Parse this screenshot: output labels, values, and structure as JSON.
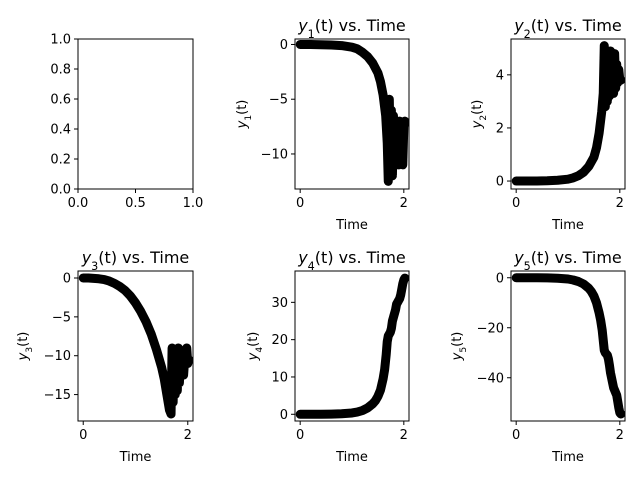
{
  "figure": {
    "background": "#ffffff"
  },
  "chart_data": [
    {
      "type": "empty",
      "title": "",
      "xlabel": "",
      "ylabel": "",
      "xlim": [
        0,
        1
      ],
      "ylim": [
        0,
        1
      ],
      "xticks": [
        0,
        0.5,
        1
      ],
      "xtick_labels": [
        "0.0",
        "0.5",
        "1.0"
      ],
      "yticks": [
        0,
        0.2,
        0.4,
        0.6,
        0.8,
        1
      ],
      "ytick_labels": [
        "0.0",
        "0.2",
        "0.4",
        "0.6",
        "0.8",
        "1.0"
      ],
      "series": []
    },
    {
      "type": "scatter",
      "title": "y₁(t) vs. Time",
      "xlabel": "Time",
      "ylabel": "y₁(t)",
      "xlim": [
        -0.1,
        2.1
      ],
      "ylim": [
        -13.2,
        0.5
      ],
      "xticks": [
        0,
        2
      ],
      "xtick_labels": [
        "0",
        "2"
      ],
      "yticks": [
        0,
        -5,
        -10
      ],
      "ytick_labels": [
        "0",
        "−5",
        "−10"
      ],
      "marker_color": "#000000",
      "series": [
        {
          "x": [
            0,
            0.2,
            0.4,
            0.6,
            0.8,
            1.0,
            1.1,
            1.2,
            1.3,
            1.4,
            1.5,
            1.55,
            1.6,
            1.65,
            1.68,
            1.7,
            1.72,
            1.74,
            1.76,
            1.78,
            1.8,
            1.82,
            1.84,
            1.86,
            1.88,
            1.9,
            1.92,
            1.94,
            1.96,
            1.98,
            2.0,
            2.02
          ],
          "y": [
            0,
            0,
            -0.02,
            -0.05,
            -0.1,
            -0.25,
            -0.4,
            -0.7,
            -1.1,
            -1.7,
            -2.6,
            -3.4,
            -4.6,
            -6.5,
            -9,
            -12.5,
            -5,
            -11,
            -6,
            -12,
            -6.5,
            -11,
            -7.5,
            -10,
            -8,
            -11,
            -7,
            -10.5,
            -7.5,
            -11,
            -7.5,
            -7
          ]
        }
      ]
    },
    {
      "type": "scatter",
      "title": "y₂(t) vs. Time",
      "xlabel": "Time",
      "ylabel": "y₂(t)",
      "xlim": [
        -0.1,
        2.1
      ],
      "ylim": [
        -0.3,
        5.35
      ],
      "xticks": [
        0,
        2
      ],
      "xtick_labels": [
        "0",
        "2"
      ],
      "yticks": [
        0,
        2,
        4
      ],
      "ytick_labels": [
        "0",
        "2",
        "4"
      ],
      "marker_color": "#000000",
      "series": [
        {
          "x": [
            0,
            0.2,
            0.4,
            0.6,
            0.8,
            1.0,
            1.1,
            1.2,
            1.3,
            1.4,
            1.5,
            1.55,
            1.6,
            1.65,
            1.68,
            1.7,
            1.72,
            1.74,
            1.76,
            1.78,
            1.8,
            1.82,
            1.84,
            1.86,
            1.88,
            1.9,
            1.92,
            1.94,
            1.96,
            1.98,
            2.0,
            2.02
          ],
          "y": [
            0,
            0,
            0,
            0.01,
            0.03,
            0.07,
            0.12,
            0.2,
            0.33,
            0.55,
            0.9,
            1.25,
            1.8,
            2.6,
            3.3,
            5.1,
            2.8,
            4.8,
            3.0,
            4.6,
            3.2,
            4.9,
            3.4,
            4.7,
            3.3,
            4.8,
            3.5,
            4.4,
            3.7,
            4.2,
            3.8,
            3.8
          ]
        }
      ]
    },
    {
      "type": "scatter",
      "title": "y₃(t) vs. Time",
      "xlabel": "Time",
      "ylabel": "y₃(t)",
      "xlim": [
        -0.1,
        2.1
      ],
      "ylim": [
        -18.4,
        0.9
      ],
      "xticks": [
        0,
        2
      ],
      "xtick_labels": [
        "0",
        "2"
      ],
      "yticks": [
        0,
        -5,
        -10,
        -15
      ],
      "ytick_labels": [
        "0",
        "−5",
        "−10",
        "−15"
      ],
      "marker_color": "#000000",
      "series": [
        {
          "x": [
            0,
            0.1,
            0.2,
            0.3,
            0.4,
            0.5,
            0.6,
            0.7,
            0.8,
            0.9,
            1.0,
            1.1,
            1.2,
            1.3,
            1.4,
            1.5,
            1.55,
            1.6,
            1.65,
            1.68,
            1.7,
            1.72,
            1.74,
            1.76,
            1.78,
            1.8,
            1.82,
            1.84,
            1.86,
            1.88,
            1.9,
            1.92,
            1.94,
            1.96,
            1.98,
            2.0,
            2.02
          ],
          "y": [
            0,
            0,
            -0.05,
            -0.1,
            -0.2,
            -0.4,
            -0.7,
            -1.1,
            -1.6,
            -2.3,
            -3.2,
            -4.3,
            -5.6,
            -7.2,
            -9.2,
            -11.5,
            -13,
            -15,
            -17,
            -17.5,
            -9,
            -16,
            -9.5,
            -15,
            -10,
            -14.5,
            -9,
            -13.5,
            -10,
            -12,
            -9.5,
            -12.5,
            -10.5,
            -11,
            -9,
            -11,
            -10.5
          ]
        }
      ]
    },
    {
      "type": "scatter",
      "title": "y₄(t) vs. Time",
      "xlabel": "Time",
      "ylabel": "y₄(t)",
      "xlim": [
        -0.1,
        2.1
      ],
      "ylim": [
        -1.8,
        38.4
      ],
      "xticks": [
        0,
        2
      ],
      "xtick_labels": [
        "0",
        "2"
      ],
      "yticks": [
        0,
        10,
        20,
        30
      ],
      "ytick_labels": [
        "0",
        "10",
        "20",
        "30"
      ],
      "marker_color": "#000000",
      "series": [
        {
          "x": [
            0,
            0.2,
            0.4,
            0.6,
            0.8,
            1.0,
            1.1,
            1.2,
            1.3,
            1.4,
            1.45,
            1.5,
            1.55,
            1.6,
            1.63,
            1.66,
            1.68,
            1.7,
            1.72,
            1.74,
            1.76,
            1.78,
            1.8,
            1.82,
            1.84,
            1.86,
            1.88,
            1.9,
            1.92,
            1.94,
            1.96,
            1.98,
            2.0,
            2.02
          ],
          "y": [
            0,
            0,
            0,
            0.05,
            0.15,
            0.35,
            0.6,
            1.0,
            1.7,
            2.8,
            3.6,
            4.8,
            6.5,
            9.5,
            12,
            16,
            19.5,
            21,
            21.5,
            22,
            23,
            25,
            26,
            27,
            28,
            29.5,
            30,
            30.5,
            31,
            32,
            33.5,
            35,
            36,
            36.5
          ]
        }
      ]
    },
    {
      "type": "scatter",
      "title": "y₅(t) vs. Time",
      "xlabel": "Time",
      "ylabel": "y₅(t)",
      "xlim": [
        -0.1,
        2.1
      ],
      "ylim": [
        -57.3,
        2.7
      ],
      "xticks": [
        0,
        2
      ],
      "xtick_labels": [
        "0",
        "2"
      ],
      "yticks": [
        0,
        -20,
        -40
      ],
      "ytick_labels": [
        "0",
        "−20",
        "−40"
      ],
      "marker_color": "#000000",
      "series": [
        {
          "x": [
            0,
            0.2,
            0.4,
            0.6,
            0.8,
            1.0,
            1.1,
            1.2,
            1.3,
            1.4,
            1.45,
            1.5,
            1.55,
            1.6,
            1.63,
            1.66,
            1.68,
            1.7,
            1.72,
            1.74,
            1.76,
            1.78,
            1.8,
            1.82,
            1.84,
            1.86,
            1.88,
            1.9,
            1.92,
            1.94,
            1.96,
            1.98,
            2.0,
            2.02
          ],
          "y": [
            0,
            0,
            0,
            -0.05,
            -0.2,
            -0.5,
            -0.9,
            -1.5,
            -2.5,
            -4.2,
            -5.5,
            -7.3,
            -10,
            -14,
            -17,
            -21,
            -25,
            -29,
            -30,
            -30.5,
            -31,
            -32.5,
            -35,
            -38,
            -40,
            -42,
            -44,
            -45,
            -46,
            -47,
            -49.5,
            -52,
            -54,
            -54.5
          ]
        }
      ]
    }
  ]
}
